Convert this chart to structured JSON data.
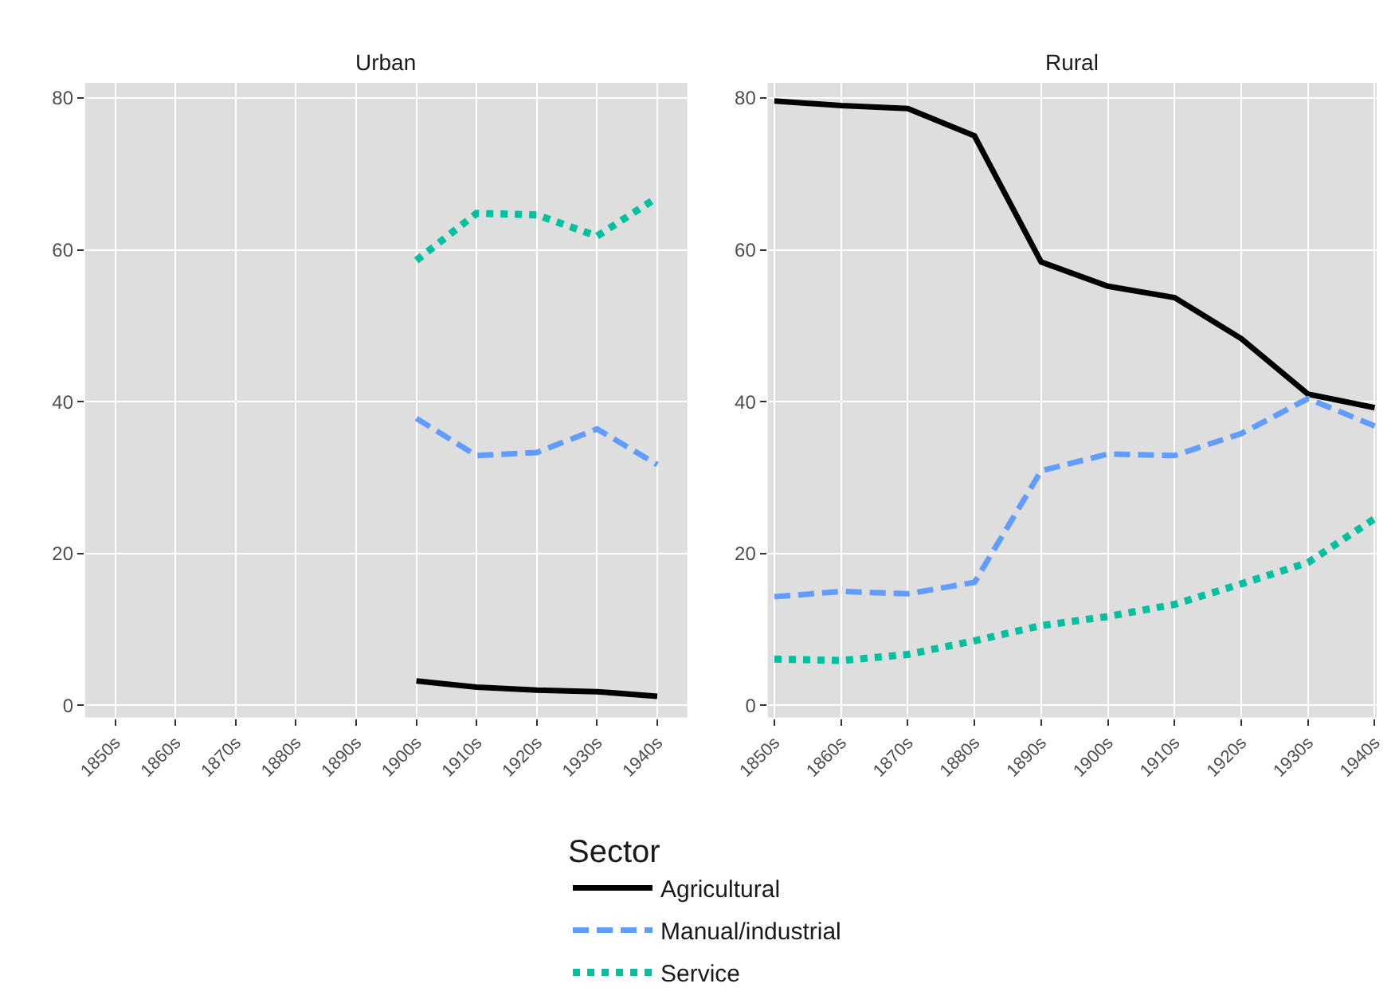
{
  "chart_data": [
    {
      "type": "line",
      "title": "Urban",
      "categories": [
        "1850s",
        "1860s",
        "1870s",
        "1880s",
        "1890s",
        "1900s",
        "1910s",
        "1920s",
        "1930s",
        "1940s"
      ],
      "ylim": [
        -1.6,
        82
      ],
      "yticks": [
        0,
        20,
        40,
        60,
        80
      ],
      "grid": true,
      "legend": "bottom",
      "legend_title": "Sector",
      "series": [
        {
          "name": "Agricultural",
          "color": "#000000",
          "line_style": "solid",
          "values": [
            null,
            null,
            null,
            null,
            null,
            3.2,
            2.4,
            2.0,
            1.8,
            1.2
          ]
        },
        {
          "name": "Manual/industrial",
          "color": "#619cff",
          "line_style": "dashed",
          "values": [
            null,
            null,
            null,
            null,
            null,
            37.8,
            32.9,
            33.3,
            36.4,
            31.7
          ]
        },
        {
          "name": "Service",
          "color": "#00c19f",
          "line_style": "dotted",
          "values": [
            null,
            null,
            null,
            null,
            null,
            58.6,
            64.8,
            64.6,
            61.8,
            66.9
          ]
        }
      ]
    },
    {
      "type": "line",
      "title": "Rural",
      "categories": [
        "1850s",
        "1860s",
        "1870s",
        "1880s",
        "1890s",
        "1900s",
        "1910s",
        "1920s",
        "1930s",
        "1940s"
      ],
      "ylim": [
        -1.6,
        82
      ],
      "yticks": [
        0,
        20,
        40,
        60,
        80
      ],
      "grid": true,
      "legend": "bottom",
      "series": [
        {
          "name": "Agricultural",
          "color": "#000000",
          "line_style": "solid",
          "values": [
            79.6,
            79.0,
            78.6,
            75.0,
            58.4,
            55.2,
            53.7,
            48.3,
            41.0,
            39.2
          ]
        },
        {
          "name": "Manual/industrial",
          "color": "#619cff",
          "line_style": "dashed",
          "values": [
            14.3,
            15.0,
            14.7,
            16.2,
            30.9,
            33.1,
            32.9,
            35.8,
            40.4,
            36.8
          ]
        },
        {
          "name": "Service",
          "color": "#00c19f",
          "line_style": "dotted",
          "values": [
            6.1,
            5.9,
            6.7,
            8.5,
            10.5,
            11.7,
            13.3,
            16.0,
            18.8,
            24.6
          ]
        }
      ]
    }
  ]
}
